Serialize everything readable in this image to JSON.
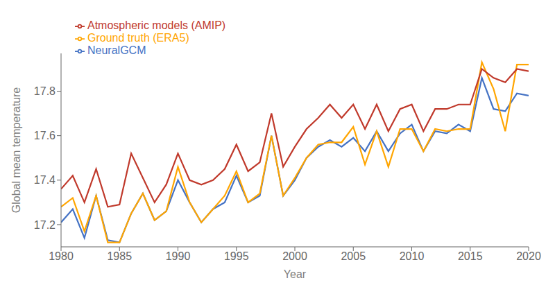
{
  "chart_data": {
    "type": "line",
    "x": [
      1980,
      1981,
      1982,
      1983,
      1984,
      1985,
      1986,
      1987,
      1988,
      1989,
      1990,
      1991,
      1992,
      1993,
      1994,
      1995,
      1996,
      1997,
      1998,
      1999,
      2000,
      2001,
      2002,
      2003,
      2004,
      2005,
      2006,
      2007,
      2008,
      2009,
      2010,
      2011,
      2012,
      2013,
      2014,
      2015,
      2016,
      2017,
      2018,
      2019,
      2020
    ],
    "series": [
      {
        "name": "NeuralGCM",
        "color": "#4472C4",
        "values": [
          17.21,
          17.27,
          17.14,
          17.33,
          17.13,
          17.12,
          17.25,
          17.34,
          17.22,
          17.26,
          17.4,
          17.3,
          17.21,
          17.27,
          17.3,
          17.42,
          17.3,
          17.33,
          17.6,
          17.33,
          17.4,
          17.5,
          17.55,
          17.58,
          17.55,
          17.59,
          17.53,
          17.62,
          17.53,
          17.61,
          17.65,
          17.53,
          17.62,
          17.61,
          17.65,
          17.62,
          17.86,
          17.72,
          17.71,
          17.79,
          17.78
        ]
      },
      {
        "name": "Ground truth (ERA5)",
        "color": "#FFA500",
        "values": [
          17.28,
          17.32,
          17.17,
          17.33,
          17.12,
          17.12,
          17.25,
          17.34,
          17.22,
          17.26,
          17.46,
          17.3,
          17.21,
          17.27,
          17.33,
          17.44,
          17.3,
          17.34,
          17.6,
          17.33,
          17.41,
          17.5,
          17.56,
          17.57,
          17.57,
          17.64,
          17.47,
          17.62,
          17.46,
          17.63,
          17.63,
          17.53,
          17.63,
          17.62,
          17.63,
          17.63,
          17.93,
          17.81,
          17.62,
          17.92,
          17.92
        ]
      },
      {
        "name": "Atmospheric models (AMIP)",
        "color": "#C0392B",
        "values": [
          17.36,
          17.42,
          17.3,
          17.45,
          17.28,
          17.29,
          17.52,
          17.41,
          17.3,
          17.38,
          17.52,
          17.4,
          17.38,
          17.4,
          17.45,
          17.56,
          17.44,
          17.48,
          17.7,
          17.46,
          17.55,
          17.63,
          17.68,
          17.74,
          17.68,
          17.74,
          17.63,
          17.74,
          17.62,
          17.72,
          17.74,
          17.62,
          17.72,
          17.72,
          17.74,
          17.74,
          17.9,
          17.86,
          17.84,
          17.9,
          17.89
        ]
      }
    ],
    "xlabel": "Year",
    "ylabel": "Global mean temperature",
    "xlim": [
      1980,
      2020
    ],
    "ylim": [
      17.1,
      17.97
    ],
    "xticks": [
      1980,
      1985,
      1990,
      1995,
      2000,
      2005,
      2010,
      2015,
      2020
    ],
    "yticks": [
      17.2,
      17.4,
      17.6,
      17.8
    ],
    "legend": "upper left",
    "grid": false
  }
}
